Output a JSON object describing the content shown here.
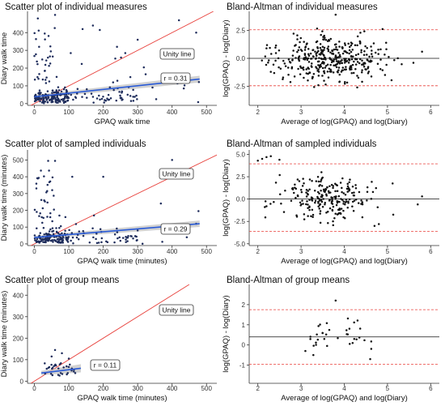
{
  "chart_data": [
    {
      "id": "p1",
      "type": "scatter",
      "title": "Scatter plot of individual measures",
      "xlabel": "GPAQ walk time",
      "ylabel": "Diary walk time",
      "xlim": [
        -20,
        530
      ],
      "ylim": [
        -10,
        520
      ],
      "xticks": [
        0,
        100,
        200,
        300,
        400,
        500
      ],
      "yticks": [
        0,
        100,
        200,
        300,
        400
      ],
      "unity_label": "Unity line",
      "r_label": "r = 0.31",
      "fit": [
        [
          0,
          38
        ],
        [
          480,
          138
        ]
      ],
      "grid": false
    },
    {
      "id": "p2",
      "type": "scatter",
      "title": "Bland-Altman of individual measures",
      "xlabel": "Average of log(GPAQ) and log(Diary)",
      "ylabel": "log(GPAQ) - log(Diary)",
      "xlim": [
        1.8,
        6.2
      ],
      "ylim": [
        -4.2,
        4.2
      ],
      "xticks": [
        2,
        3,
        4,
        5,
        6
      ],
      "yticks": [
        -2.5,
        0.0,
        2.5
      ],
      "ytick_labels": [
        "-2.5",
        "0.0",
        "2.5"
      ],
      "mean": 0.0,
      "limits": [
        -2.45,
        2.55
      ],
      "grid": false
    },
    {
      "id": "p3",
      "type": "scatter",
      "title": "Scatter plot of sampled individuals",
      "xlabel": "GPAQ walk time (minutes)",
      "ylabel": "Diary walk time (minutes)",
      "xlim": [
        -20,
        530
      ],
      "ylim": [
        -10,
        560
      ],
      "xticks": [
        0,
        100,
        200,
        300,
        400,
        500
      ],
      "yticks": [
        0,
        100,
        200,
        300,
        400,
        500
      ],
      "unity_label": "Unity line",
      "r_label": "r = 0.29",
      "fit": [
        [
          0,
          38
        ],
        [
          480,
          120
        ]
      ],
      "grid": false
    },
    {
      "id": "p4",
      "type": "scatter",
      "title": "Bland-Altman of sampled individuals",
      "xlabel": "Average of log(GPAQ) and log(Diary)",
      "ylabel": "log(GPAQ) - log(Diary)",
      "xlim": [
        1.8,
        6.2
      ],
      "ylim": [
        -5.2,
        5.5
      ],
      "xticks": [
        2,
        3,
        4,
        5,
        6
      ],
      "yticks": [
        -5.0,
        -2.5,
        0.0,
        2.5,
        5.0
      ],
      "ytick_labels": [
        "-5.0",
        "-2.5",
        "0.0",
        "2.5",
        "5.0"
      ],
      "mean": 0.0,
      "limits": [
        -3.6,
        3.95
      ],
      "grid": false
    },
    {
      "id": "p5",
      "type": "scatter",
      "title": "Scatter plot of group means",
      "xlabel": "GPAQ walk time (minutes)",
      "ylabel": "Diary walk time (minutes)",
      "xlim": [
        -20,
        530
      ],
      "ylim": [
        -10,
        450
      ],
      "xticks": [
        0,
        100,
        200,
        300,
        400,
        500
      ],
      "yticks": [
        0,
        100,
        200,
        300,
        400
      ],
      "unity_label": "Unity line",
      "r_label": "r = 0.11",
      "fit": [
        [
          20,
          38
        ],
        [
          135,
          60
        ]
      ],
      "grid": false
    },
    {
      "id": "p6",
      "type": "scatter",
      "title": "Bland-Altman of group means",
      "xlabel": "Average of log(GPAQ) and log(Diary)",
      "ylabel": "log(GPAQ) - log(Diary)",
      "xlim": [
        1.8,
        6.2
      ],
      "ylim": [
        -1.9,
        3.0
      ],
      "xticks": [
        2,
        3,
        4,
        5,
        6
      ],
      "yticks": [
        -1,
        0,
        1,
        2
      ],
      "ytick_labels": [
        "-1",
        "0",
        "1",
        "2"
      ],
      "mean": 0.4,
      "limits": [
        -0.95,
        1.75
      ],
      "grid": false
    }
  ],
  "colors": {
    "point": "#111111",
    "point_alt": "#1f2d5c",
    "unity": "#e8413c",
    "fit": "#2a5bd7",
    "ci_band": "#bdbdbd",
    "limits": "#e8413c",
    "zero": "#111111"
  }
}
